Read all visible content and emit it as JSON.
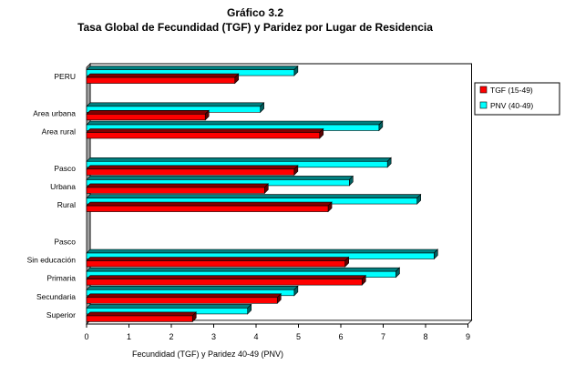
{
  "chart_data": {
    "type": "bar",
    "orientation": "horizontal",
    "title": "Gráfico 3.2",
    "subtitle": "Tasa Global de Fecundidad (TGF) y Paridez por Lugar de Residencia",
    "xlabel": "Fecundidad (TGF) y Paridez 40-49 (PNV)",
    "ylabel": "",
    "xlim": [
      0,
      9
    ],
    "xticks": [
      0,
      1,
      2,
      3,
      4,
      5,
      6,
      7,
      8,
      9
    ],
    "grid": true,
    "legend_position": "right",
    "categories": [
      "PERU",
      "",
      "Area urbana",
      "Area rural",
      "",
      "Pasco",
      "Urbana",
      "Rural",
      "",
      "Pasco",
      "Sin educación",
      "Primaria",
      "Secundaria",
      "Superior"
    ],
    "series": [
      {
        "name": "TGF (15-49)",
        "color": "#ff0000",
        "values": [
          3.5,
          null,
          2.8,
          5.5,
          null,
          4.9,
          4.2,
          5.7,
          null,
          null,
          6.1,
          6.5,
          4.5,
          2.5
        ]
      },
      {
        "name": "PNV (40-49)",
        "color": "#00ffff",
        "values": [
          4.9,
          null,
          4.1,
          6.9,
          null,
          7.1,
          6.2,
          7.8,
          null,
          null,
          8.2,
          7.3,
          4.9,
          3.8
        ]
      }
    ]
  }
}
